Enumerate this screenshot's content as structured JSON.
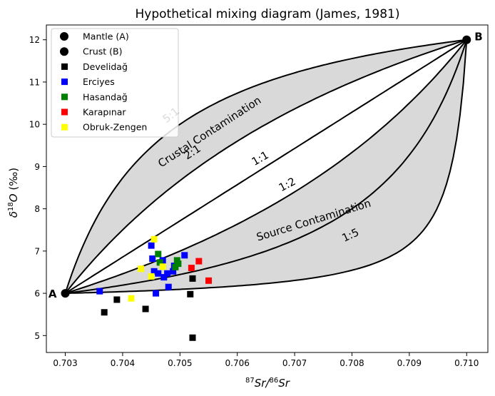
{
  "chart_data": {
    "type": "scatter",
    "title": "Hypothetical mixing diagram (James, 1981)",
    "xlabel": "87Sr/86Sr",
    "ylabel": "δ18O (‰)",
    "xlim": [
      0.70267,
      0.71037
    ],
    "ylim": [
      4.6,
      12.35
    ],
    "xticks": [
      0.703,
      0.704,
      0.705,
      0.706,
      0.707,
      0.708,
      0.709,
      0.71
    ],
    "xtick_labels": [
      "0.703",
      "0.704",
      "0.705",
      "0.706",
      "0.707",
      "0.708",
      "0.709",
      "0.710"
    ],
    "yticks": [
      5,
      6,
      7,
      8,
      9,
      10,
      11,
      12
    ],
    "ytick_labels": [
      "5",
      "6",
      "7",
      "8",
      "9",
      "10",
      "11",
      "12"
    ],
    "grid": false,
    "legend_position": "top-left",
    "endmembers": {
      "A": {
        "label": "A",
        "x": 0.703,
        "y": 6.0
      },
      "B": {
        "label": "B",
        "x": 0.71,
        "y": 12.0
      }
    },
    "mixing_curves": [
      {
        "name": "5:1",
        "r": 5,
        "label": "5:1"
      },
      {
        "name": "2:1",
        "r": 2,
        "label": "2:1"
      },
      {
        "name": "1:1",
        "r": 1,
        "label": "1:1"
      },
      {
        "name": "1:2",
        "r": 0.5,
        "label": "1:2"
      },
      {
        "name": "1:5",
        "r": 0.2,
        "label": "1:5"
      },
      {
        "name": "lower",
        "r": 0.04,
        "label": ""
      }
    ],
    "region_labels": [
      {
        "text": "Crustal Contamination",
        "x": 0.70555,
        "y": 9.75,
        "angle": -33
      },
      {
        "text": "Source Contamination",
        "x": 0.70735,
        "y": 7.65,
        "angle": -17
      }
    ],
    "curve_labels": [
      {
        "text": "5:1",
        "x": 0.70488,
        "y": 10.15,
        "angle": -38
      },
      {
        "text": "2:1",
        "x": 0.70525,
        "y": 9.27,
        "angle": -33
      },
      {
        "text": "1:1",
        "x": 0.70643,
        "y": 9.12,
        "angle": -30
      },
      {
        "text": "1:2",
        "x": 0.7069,
        "y": 8.5,
        "angle": -28
      },
      {
        "text": "1:5",
        "x": 0.708,
        "y": 7.3,
        "angle": -25
      }
    ],
    "series": [
      {
        "name": "Mantle (A)",
        "marker": "circle",
        "color": "#000000",
        "points": [
          [
            0.703,
            6.0
          ]
        ]
      },
      {
        "name": "Crust (B)",
        "marker": "circle",
        "color": "#000000",
        "points": [
          [
            0.71,
            12.0
          ]
        ]
      },
      {
        "name": "Develidağ",
        "marker": "square",
        "color": "#000000",
        "points": [
          [
            0.70368,
            5.55
          ],
          [
            0.7039,
            5.85
          ],
          [
            0.7044,
            5.63
          ],
          [
            0.70518,
            5.98
          ],
          [
            0.70522,
            6.35
          ],
          [
            0.70522,
            4.95
          ]
        ]
      },
      {
        "name": "Erciyes",
        "marker": "square",
        "color": "#0000ff",
        "points": [
          [
            0.7036,
            6.05
          ],
          [
            0.7045,
            7.13
          ],
          [
            0.70452,
            6.82
          ],
          [
            0.70455,
            6.52
          ],
          [
            0.70462,
            6.47
          ],
          [
            0.70458,
            6.0
          ],
          [
            0.7047,
            6.78
          ],
          [
            0.70472,
            6.38
          ],
          [
            0.70478,
            6.47
          ],
          [
            0.7048,
            6.15
          ],
          [
            0.70488,
            6.52
          ],
          [
            0.7049,
            6.65
          ],
          [
            0.70508,
            6.9
          ]
        ]
      },
      {
        "name": "Hasandağ",
        "marker": "square",
        "color": "#008000",
        "points": [
          [
            0.70462,
            6.93
          ],
          [
            0.70465,
            6.73
          ],
          [
            0.70492,
            6.62
          ],
          [
            0.70495,
            6.78
          ],
          [
            0.70497,
            6.7
          ]
        ]
      },
      {
        "name": "Karapınar",
        "marker": "square",
        "color": "#ff0000",
        "points": [
          [
            0.7052,
            6.6
          ],
          [
            0.70533,
            6.76
          ],
          [
            0.7055,
            6.3
          ]
        ]
      },
      {
        "name": "Obruk-Zengen",
        "marker": "square",
        "color": "#ffff00",
        "points": [
          [
            0.70415,
            5.88
          ],
          [
            0.70432,
            6.58
          ],
          [
            0.7045,
            6.4
          ],
          [
            0.70455,
            7.28
          ],
          [
            0.7047,
            6.63
          ]
        ]
      }
    ]
  }
}
